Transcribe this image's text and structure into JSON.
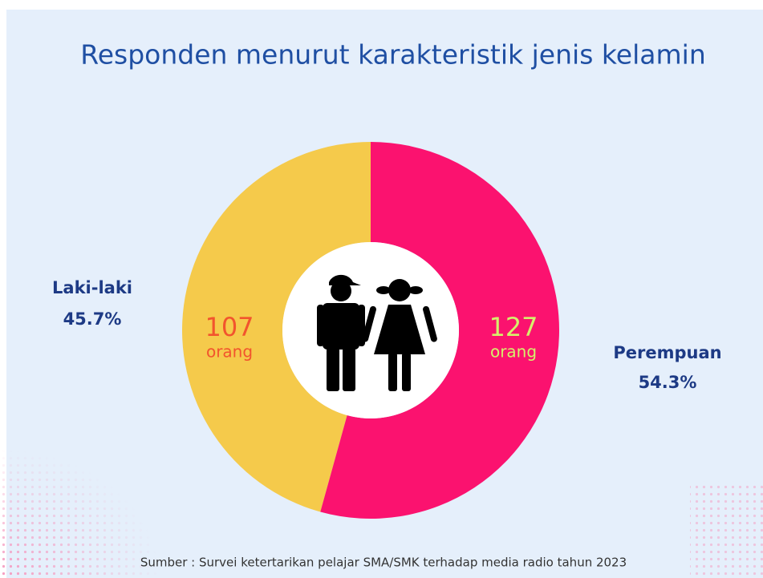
{
  "chart_data": {
    "type": "donut",
    "title": "Responden menurut karakteristik jenis kelamin",
    "categories": [
      "Laki-laki",
      "Perempuan"
    ],
    "values": [
      45.7,
      54.3
    ],
    "value_labels": [
      "45.7%",
      "54.3%"
    ],
    "counts": [
      107,
      127
    ],
    "count_unit": "orang",
    "colors": [
      "#f5ca4b",
      "#fb126f"
    ],
    "source": "Sumber : Survei ketertarikan pelajar SMA/SMK terhadap media radio tahun 2023"
  }
}
